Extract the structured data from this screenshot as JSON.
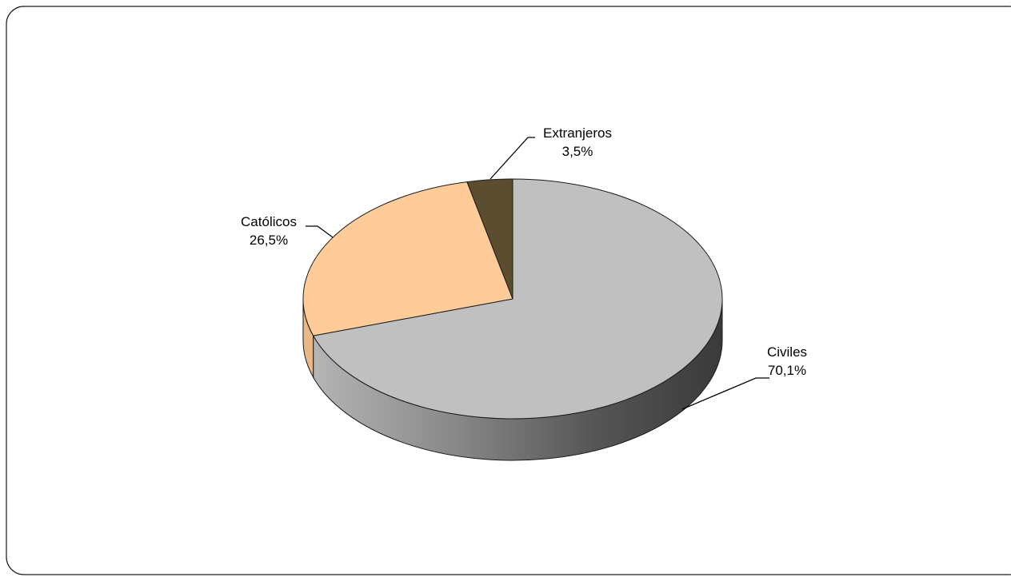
{
  "chart_data": {
    "type": "pie",
    "style": "3d",
    "title": "",
    "slices": [
      {
        "label": "Civiles",
        "value": 70.1,
        "value_label": "70,1%",
        "color": "#c0c0c0",
        "side_color_light": "#a8a8a8",
        "side_color_dark": "#3c3c3c"
      },
      {
        "label": "Católicos",
        "value": 26.5,
        "value_label": "26,5%",
        "color": "#ffcc99",
        "side_color_light": "#e8b888",
        "side_color_dark": "#d9a26a"
      },
      {
        "label": "Extranjeros",
        "value": 3.5,
        "value_label": "3,5%",
        "color": "#5c4d30",
        "side_color_light": "#4a3e26",
        "side_color_dark": "#3a301c"
      }
    ],
    "legend": "none"
  }
}
